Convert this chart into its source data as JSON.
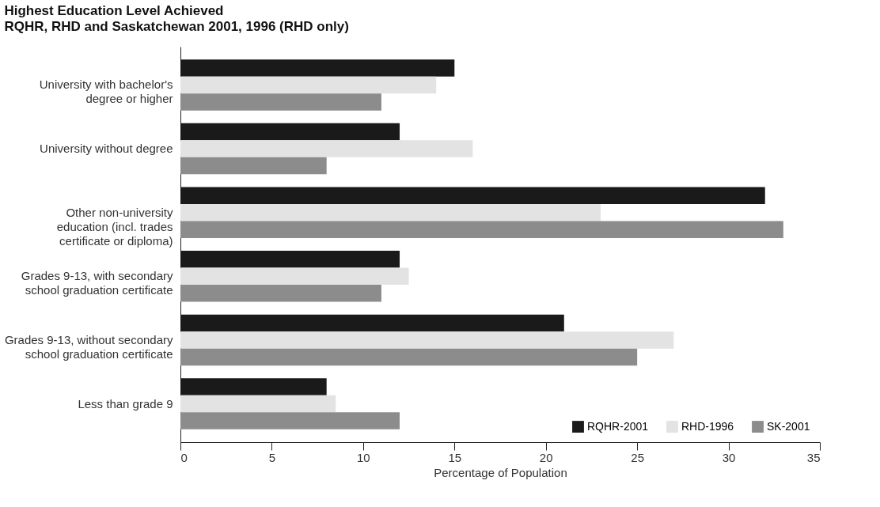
{
  "chart_data": {
    "type": "bar",
    "orientation": "horizontal",
    "title": "Highest Education Level Achieved",
    "subtitle": "RQHR, RHD and Saskatchewan 2001, 1996 (RHD only)",
    "categories": [
      "University with bachelor's\ndegree or higher",
      "University without degree",
      "Other non-university\neducation (incl. trades\ncertificate or diploma)",
      "Grades 9-13, with secondary\nschool graduation certificate",
      "Grades 9-13, without secondary\nschool graduation certificate",
      "Less than grade 9"
    ],
    "series": [
      {
        "name": "RQHR-2001",
        "color": "#1a1a1a",
        "values": [
          15,
          12,
          32,
          12,
          21,
          8
        ]
      },
      {
        "name": "RHD-1996",
        "color": "#e3e3e3",
        "values": [
          14,
          16,
          23,
          12.5,
          27,
          8.5
        ]
      },
      {
        "name": "SK-2001",
        "color": "#8c8c8c",
        "values": [
          11,
          8,
          33,
          11,
          25,
          12
        ]
      }
    ],
    "xlabel": "Percentage of Population",
    "xlim": [
      0,
      35
    ],
    "xticks": [
      0,
      5,
      10,
      15,
      20,
      25,
      30,
      35
    ],
    "grid": false,
    "legend": "bottom right"
  }
}
